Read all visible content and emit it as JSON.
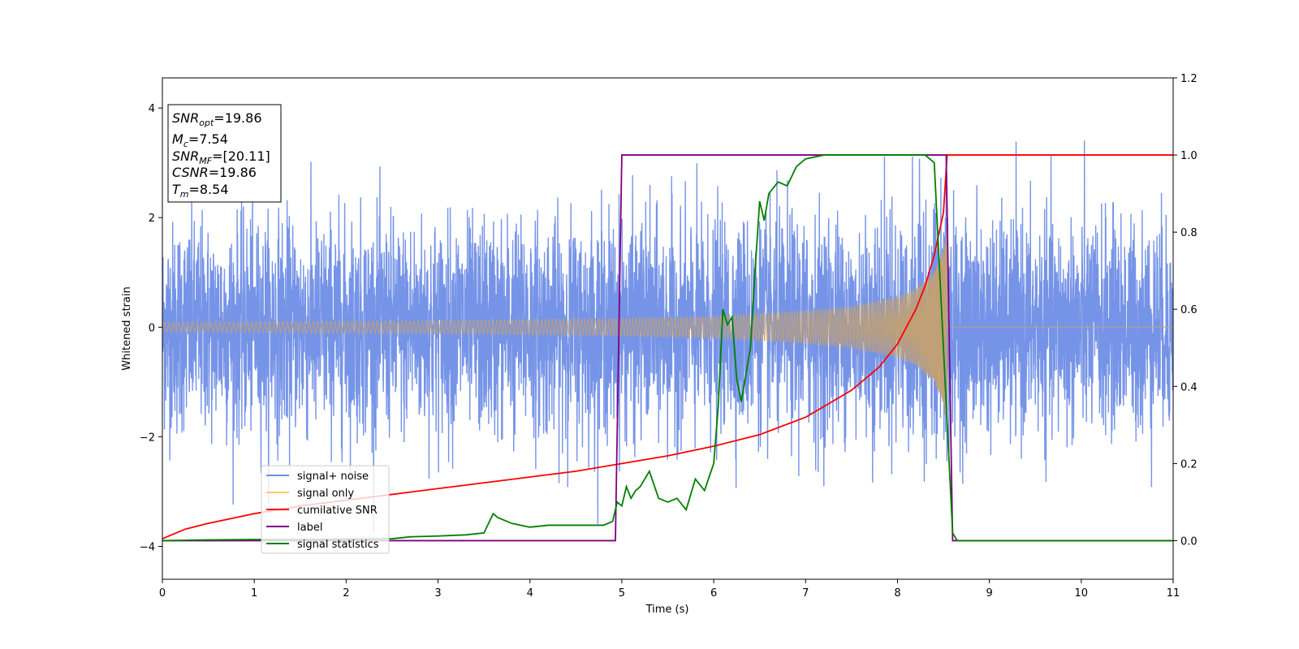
{
  "chart_data": {
    "type": "line",
    "xlabel": "Time (s)",
    "ylabel": "Whitened strain",
    "xlim": [
      0,
      11
    ],
    "ylim": [
      -4.6,
      4.55
    ],
    "y2lim": [
      -0.1,
      1.2
    ],
    "xticks": [
      0,
      1,
      2,
      3,
      4,
      5,
      6,
      7,
      8,
      9,
      10,
      11
    ],
    "yticks": [
      -4,
      -2,
      0,
      2,
      4
    ],
    "y2ticks": [
      "0.0",
      "0.2",
      "0.4",
      "0.6",
      "0.8",
      "1.0",
      "1.2"
    ],
    "legend_position": "lower-left",
    "grid": false,
    "info_box": [
      {
        "symbol": "SNR",
        "subscript": "opt",
        "value": "=19.86"
      },
      {
        "symbol": "M",
        "subscript": "c",
        "value": "=7.54"
      },
      {
        "symbol": "SNR",
        "subscript": "MF",
        "value": "=[20.11]"
      },
      {
        "symbol": "CSNR",
        "subscript": "",
        "value": "=19.86"
      },
      {
        "symbol": "T",
        "subscript": "m",
        "value": "=8.54"
      }
    ],
    "series": [
      {
        "name": "signal+ noise",
        "axis": "left",
        "color": "#6f8ee6",
        "description_points_x": [
          0,
          11
        ],
        "noise_sigma": 0.95,
        "chirp_end_time": 8.54
      },
      {
        "name": "signal only",
        "axis": "left",
        "color": "#c4a070",
        "envelope_x": [
          0,
          1,
          2,
          3,
          4,
          5,
          6,
          7,
          7.5,
          8,
          8.2,
          8.4,
          8.5,
          8.54,
          8.56,
          11
        ],
        "envelope_y": [
          0.09,
          0.1,
          0.11,
          0.12,
          0.14,
          0.16,
          0.2,
          0.3,
          0.38,
          0.55,
          0.7,
          1.0,
          1.4,
          1.8,
          0,
          0
        ]
      },
      {
        "name": "cumilative SNR",
        "axis": "right",
        "color": "#ff0000",
        "x": [
          0,
          0.25,
          0.5,
          1,
          1.5,
          2,
          2.5,
          3,
          3.5,
          4,
          4.5,
          5,
          5.5,
          6,
          6.5,
          7,
          7.5,
          7.8,
          8,
          8.2,
          8.3,
          8.4,
          8.5,
          8.54,
          8.6,
          11
        ],
        "values": [
          0.005,
          0.03,
          0.045,
          0.07,
          0.09,
          0.105,
          0.12,
          0.135,
          0.15,
          0.165,
          0.18,
          0.2,
          0.22,
          0.245,
          0.275,
          0.32,
          0.39,
          0.45,
          0.51,
          0.6,
          0.66,
          0.74,
          0.85,
          1.0,
          1.0,
          1.0
        ]
      },
      {
        "name": "label",
        "axis": "right",
        "color": "#800080",
        "x": [
          0,
          4.93,
          5.0,
          8.53,
          8.6,
          11
        ],
        "values": [
          0.0,
          0.0,
          1.0,
          1.0,
          0.0,
          0.0
        ]
      },
      {
        "name": "signal statistics",
        "axis": "right",
        "color": "#008000",
        "x": [
          0,
          0.5,
          1,
          1.5,
          2,
          2.5,
          2.7,
          3,
          3.3,
          3.5,
          3.6,
          3.65,
          3.7,
          3.8,
          3.9,
          4,
          4.2,
          4.4,
          4.6,
          4.8,
          4.9,
          4.95,
          5.0,
          5.05,
          5.1,
          5.15,
          5.2,
          5.3,
          5.4,
          5.5,
          5.6,
          5.7,
          5.8,
          5.9,
          6.0,
          6.05,
          6.1,
          6.15,
          6.2,
          6.25,
          6.3,
          6.4,
          6.45,
          6.5,
          6.55,
          6.6,
          6.7,
          6.8,
          6.9,
          7.0,
          7.2,
          7.5,
          7.8,
          8.0,
          8.3,
          8.4,
          8.5,
          8.6,
          8.65,
          8.7,
          11
        ],
        "values": [
          0.0,
          0.002,
          0.003,
          0.003,
          0.004,
          0.005,
          0.01,
          0.012,
          0.015,
          0.02,
          0.07,
          0.06,
          0.055,
          0.045,
          0.04,
          0.035,
          0.04,
          0.04,
          0.04,
          0.04,
          0.05,
          0.1,
          0.09,
          0.14,
          0.11,
          0.13,
          0.14,
          0.18,
          0.11,
          0.1,
          0.11,
          0.08,
          0.16,
          0.13,
          0.2,
          0.35,
          0.6,
          0.56,
          0.58,
          0.42,
          0.36,
          0.5,
          0.7,
          0.88,
          0.83,
          0.9,
          0.93,
          0.92,
          0.97,
          0.99,
          1.0,
          1.0,
          1.0,
          1.0,
          1.0,
          0.98,
          0.5,
          0.02,
          0.0,
          0.0,
          0.0
        ]
      }
    ]
  }
}
